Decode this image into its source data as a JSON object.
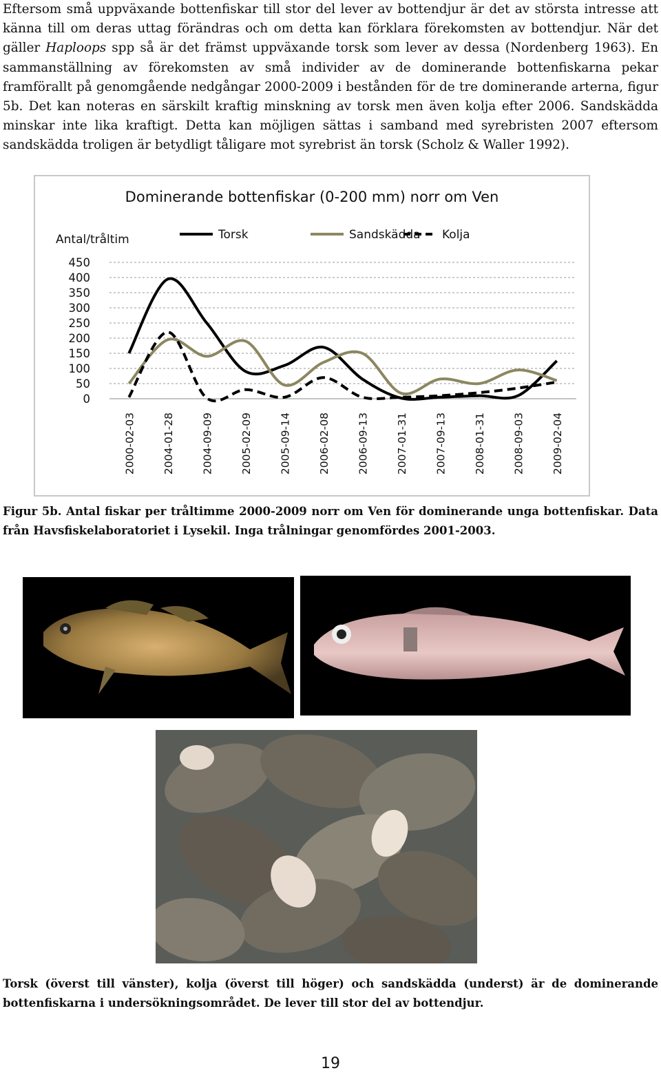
{
  "intro": {
    "part1": "Eftersom små uppväxande bottenfiskar till stor del lever av bottendjur är det av största intresse att känna till om deras uttag förändras och om detta kan förklara förekomsten av bottendjur. När det gäller ",
    "italic": "Haploops",
    "part2": " spp så är det främst uppväxande torsk som lever av dessa (Nordenberg 1963). En sammanställning av förekomsten av små individer av de dominerande bottenfiskarna pekar framförallt på genomgående nedgångar 2000-2009 i bestånden för de tre dominerande arterna, figur 5b. Det kan noteras en särskilt kraftig minskning av torsk men även kolja efter 2006. Sandskädda minskar inte lika kraftigt. Detta kan möjligen sättas i samband med syrebristen 2007 eftersom sandskädda troligen är betydligt tåligare mot syrebrist än torsk (Scholz & Waller 1992)."
  },
  "chart_data": {
    "type": "line",
    "title": "Dominerande bottenfiskar (0-200 mm) norr om Ven",
    "ylabel": "Antal/tråltim",
    "xlabel": "",
    "ylim": [
      0,
      450
    ],
    "yticks": [
      "450",
      "400",
      "350",
      "300",
      "250",
      "200",
      "150",
      "100",
      "50",
      "0"
    ],
    "grid": true,
    "legend_position": "top",
    "categories": [
      "2000-02-03",
      "2004-01-28",
      "2004-09-09",
      "2005-02-09",
      "2005-09-14",
      "2006-02-08",
      "2006-09-13",
      "2007-01-31",
      "2007-09-13",
      "2008-01-31",
      "2008-09-03",
      "2009-02-04"
    ],
    "series": [
      {
        "name": "Torsk",
        "color": "#000000",
        "dash": "solid",
        "values": [
          150,
          395,
          250,
          90,
          110,
          170,
          65,
          2,
          5,
          10,
          10,
          125
        ]
      },
      {
        "name": "Sandskädda",
        "color": "#8c8760",
        "dash": "solid",
        "values": [
          50,
          195,
          140,
          190,
          45,
          120,
          150,
          18,
          65,
          50,
          95,
          60
        ]
      },
      {
        "name": "Kolja",
        "color": "#000000",
        "dash": "dashed",
        "values": [
          5,
          220,
          2,
          30,
          5,
          70,
          5,
          5,
          10,
          20,
          35,
          55
        ]
      }
    ]
  },
  "caption1": "Figur 5b. Antal fiskar per tråltimme 2000-2009 norr om Ven för dominerande unga bottenfiskar. Data från Havsfiskelaboratoriet i Lysekil. Inga trålningar genomfördes 2001-2003.",
  "caption2": "Torsk (överst till vänster), kolja (överst till höger) och sandskädda (underst) är de dominerande bottenfiskarna i undersökningsområdet. De lever till stor del av bottendjur.",
  "page_number": "19",
  "colors": {
    "torsk": "#000000",
    "sandskadda": "#8c8760",
    "kolja": "#000000",
    "photo_bg": "#000000"
  }
}
